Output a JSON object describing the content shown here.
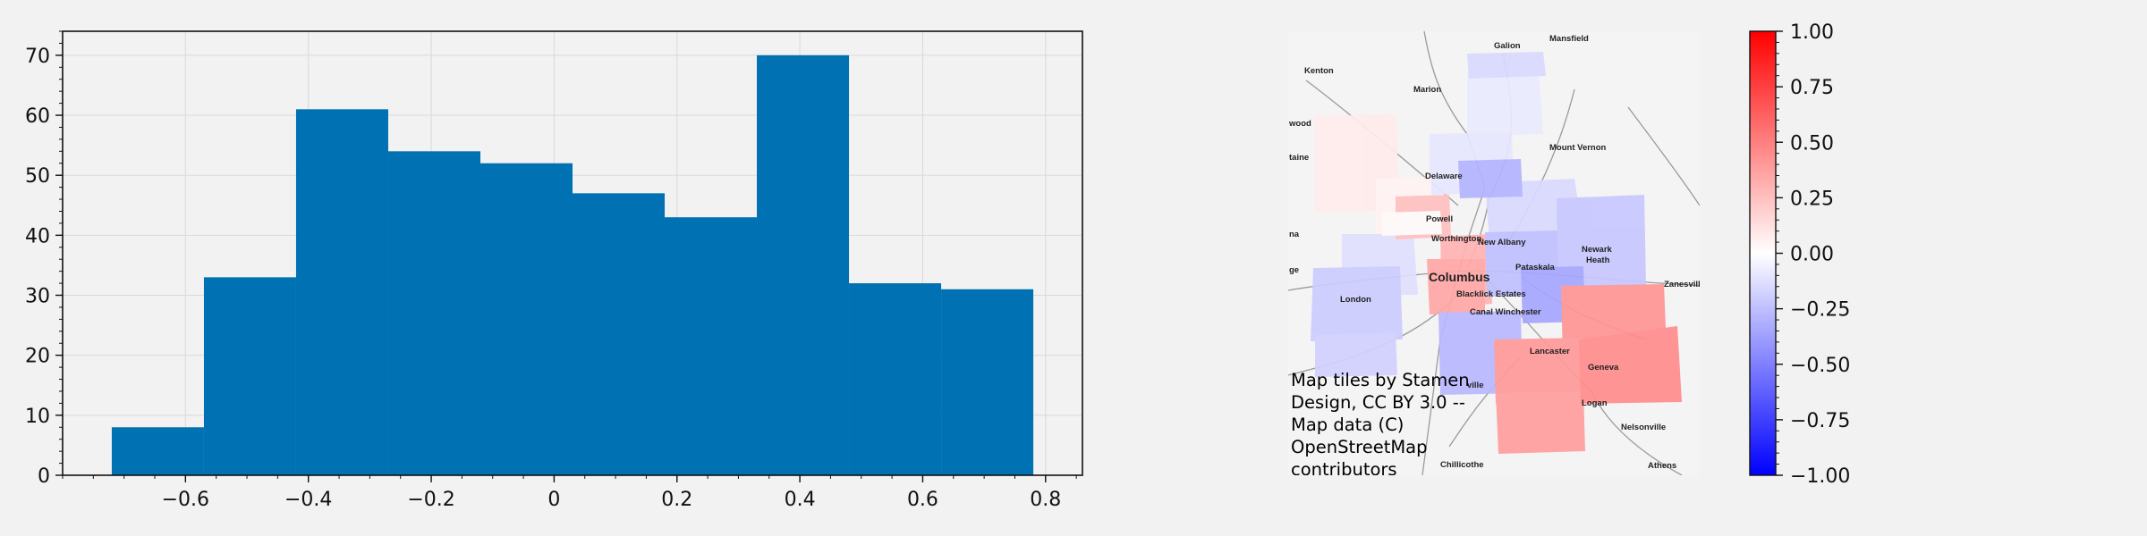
{
  "colors": {
    "figure_bg": "#f2f2f2",
    "bar": "#0071b2",
    "grid": "#d9d9d9",
    "map_bg": "#f4f4f4",
    "cmap_low": "#0000ff",
    "cmap_mid": "#ffffff",
    "cmap_high": "#ff0000"
  },
  "chart_data": [
    {
      "type": "bar",
      "subtype": "histogram",
      "bin_edges": [
        -0.72,
        -0.57,
        -0.42,
        -0.27,
        -0.12,
        0.03,
        0.18,
        0.33,
        0.48,
        0.63,
        0.78
      ],
      "values": [
        8,
        33,
        61,
        54,
        52,
        47,
        43,
        70,
        32,
        31
      ],
      "xlim": [
        -0.8,
        0.86
      ],
      "ylim": [
        0,
        74
      ],
      "xticks": [
        -0.6,
        -0.4,
        -0.2,
        0,
        0.2,
        0.4,
        0.6,
        0.8
      ],
      "xtick_labels": [
        "−0.6",
        "−0.4",
        "−0.2",
        "0",
        "0.2",
        "0.4",
        "0.6",
        "0.8"
      ],
      "yticks": [
        0,
        10,
        20,
        30,
        40,
        50,
        60,
        70
      ],
      "ytick_labels": [
        "0",
        "10",
        "20",
        "30",
        "40",
        "50",
        "60",
        "70"
      ],
      "grid": true
    },
    {
      "type": "heatmap",
      "subtype": "choropleth-map",
      "basemap_credit": [
        "Map tiles by Stamen",
        "Design, CC BY 3.0 --",
        "Map data (C)",
        "OpenStreetMap",
        "contributors"
      ],
      "colorbar": {
        "vmin": -1.0,
        "vmax": 1.0,
        "ticks": [
          1.0,
          0.75,
          0.5,
          0.25,
          0.0,
          -0.25,
          -0.5,
          -0.75,
          -1.0
        ],
        "tick_labels": [
          "1.00",
          "0.75",
          "0.50",
          "0.25",
          "0.00",
          "−0.25",
          "−0.50",
          "−0.75",
          "−1.00"
        ],
        "colors": [
          "blue",
          "white",
          "red"
        ]
      },
      "places": [
        "Galion",
        "Mansfield",
        "Kenton",
        "Marion",
        "wood",
        "Mount Vernon",
        "taine",
        "Delaware",
        "Powell",
        "Worthington",
        "New Albany",
        "Newark",
        "Heath",
        "na",
        "Pataskala",
        "ge",
        "Columbus",
        "Zanesville",
        "Blacklick Estates",
        "London",
        "Canal Winchester",
        "Lancaster",
        "Geneva",
        "ville",
        "Logan",
        "Nelsonville",
        "Chillicothe",
        "Athens"
      ],
      "regions": [
        {
          "value": 0.08
        },
        {
          "value": -0.08
        },
        {
          "value": -0.1
        },
        {
          "value": -0.15
        },
        {
          "value": 0.05
        },
        {
          "value": -0.12
        },
        {
          "value": 0.25
        },
        {
          "value": 0.3
        },
        {
          "value": 0.35
        },
        {
          "value": -0.2
        },
        {
          "value": -0.18
        },
        {
          "value": -0.25
        },
        {
          "value": -0.22
        },
        {
          "value": -0.35
        },
        {
          "value": -0.28
        },
        {
          "value": 0.42
        },
        {
          "value": 0.4
        },
        {
          "value": 0.38
        },
        {
          "value": 0.45
        },
        {
          "value": -0.3
        },
        {
          "value": -0.15
        },
        {
          "value": 0.02
        }
      ]
    }
  ]
}
